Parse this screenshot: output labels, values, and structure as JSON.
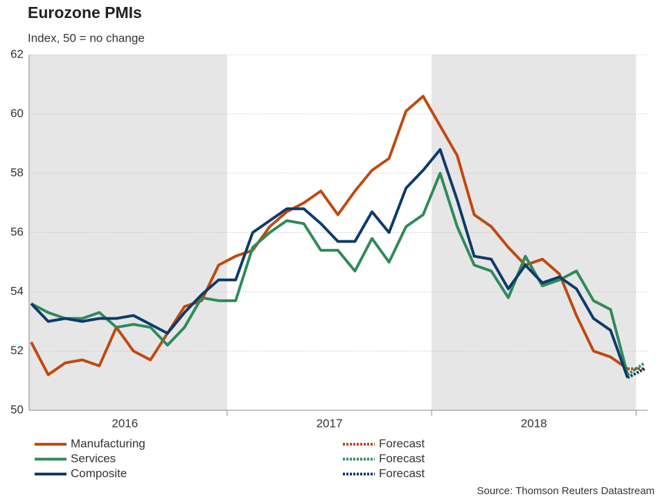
{
  "chart_data": {
    "type": "line",
    "title": "Eurozone PMIs",
    "subtitle": "Index, 50 = no change",
    "source": "Source: Thomson Reuters Datastream",
    "categories": [
      null,
      null,
      null,
      null,
      null,
      null,
      null,
      null,
      null,
      null,
      null,
      null,
      null,
      null,
      null,
      null,
      null,
      null,
      null,
      null,
      null,
      null,
      null,
      null,
      null,
      null,
      null,
      null,
      null,
      null,
      null,
      null,
      null,
      null,
      null,
      null,
      null
    ],
    "year_labels": [
      "2016",
      "2017",
      "2018"
    ],
    "shaded_years": [
      true,
      false,
      true
    ],
    "ylim": [
      50,
      62
    ],
    "yticks": [
      50,
      52,
      54,
      56,
      58,
      60,
      62
    ],
    "grid": true,
    "series": [
      {
        "name": "Manufacturing",
        "color": "#c0490f",
        "dashed": false,
        "values": [
          52.3,
          51.2,
          51.6,
          51.7,
          51.5,
          52.8,
          52.0,
          51.7,
          52.6,
          53.5,
          53.7,
          54.9,
          55.2,
          55.4,
          56.2,
          56.7,
          57.0,
          57.4,
          56.6,
          57.4,
          58.1,
          58.5,
          60.1,
          60.6,
          59.6,
          58.6,
          56.6,
          56.2,
          55.5,
          54.9,
          55.1,
          54.6,
          53.2,
          52.0,
          51.8,
          51.4,
          null
        ]
      },
      {
        "name": "Services",
        "color": "#2f8a5b",
        "dashed": false,
        "values": [
          53.6,
          53.3,
          53.1,
          53.1,
          53.3,
          52.8,
          52.9,
          52.8,
          52.2,
          52.8,
          53.8,
          53.7,
          53.7,
          55.5,
          56.0,
          56.4,
          56.3,
          55.4,
          55.4,
          54.7,
          55.8,
          55.0,
          56.2,
          56.6,
          58.0,
          56.2,
          54.9,
          54.7,
          53.8,
          55.2,
          54.2,
          54.4,
          54.7,
          53.7,
          53.4,
          51.2,
          null
        ]
      },
      {
        "name": "Composite",
        "color": "#0d3a6b",
        "dashed": false,
        "values": [
          53.6,
          53.0,
          53.1,
          53.0,
          53.1,
          53.1,
          53.2,
          52.9,
          52.6,
          53.3,
          53.9,
          54.4,
          54.4,
          56.0,
          56.4,
          56.8,
          56.8,
          56.3,
          55.7,
          55.7,
          56.7,
          56.0,
          57.5,
          58.1,
          58.8,
          57.1,
          55.2,
          55.1,
          54.1,
          54.9,
          54.3,
          54.5,
          54.1,
          53.1,
          52.7,
          51.1,
          null
        ]
      },
      {
        "name": "Forecast",
        "color": "#c0490f",
        "dashed": true,
        "values": [
          null,
          null,
          null,
          null,
          null,
          null,
          null,
          null,
          null,
          null,
          null,
          null,
          null,
          null,
          null,
          null,
          null,
          null,
          null,
          null,
          null,
          null,
          null,
          null,
          null,
          null,
          null,
          null,
          null,
          null,
          null,
          null,
          null,
          null,
          null,
          51.4,
          51.4
        ]
      },
      {
        "name": "Forecast",
        "color": "#2f8a5b",
        "dashed": true,
        "values": [
          null,
          null,
          null,
          null,
          null,
          null,
          null,
          null,
          null,
          null,
          null,
          null,
          null,
          null,
          null,
          null,
          null,
          null,
          null,
          null,
          null,
          null,
          null,
          null,
          null,
          null,
          null,
          null,
          null,
          null,
          null,
          null,
          null,
          null,
          null,
          51.2,
          51.6
        ]
      },
      {
        "name": "Forecast",
        "color": "#0d3a6b",
        "dashed": true,
        "values": [
          null,
          null,
          null,
          null,
          null,
          null,
          null,
          null,
          null,
          null,
          null,
          null,
          null,
          null,
          null,
          null,
          null,
          null,
          null,
          null,
          null,
          null,
          null,
          null,
          null,
          null,
          null,
          null,
          null,
          null,
          null,
          null,
          null,
          null,
          null,
          51.1,
          51.4
        ]
      }
    ]
  }
}
